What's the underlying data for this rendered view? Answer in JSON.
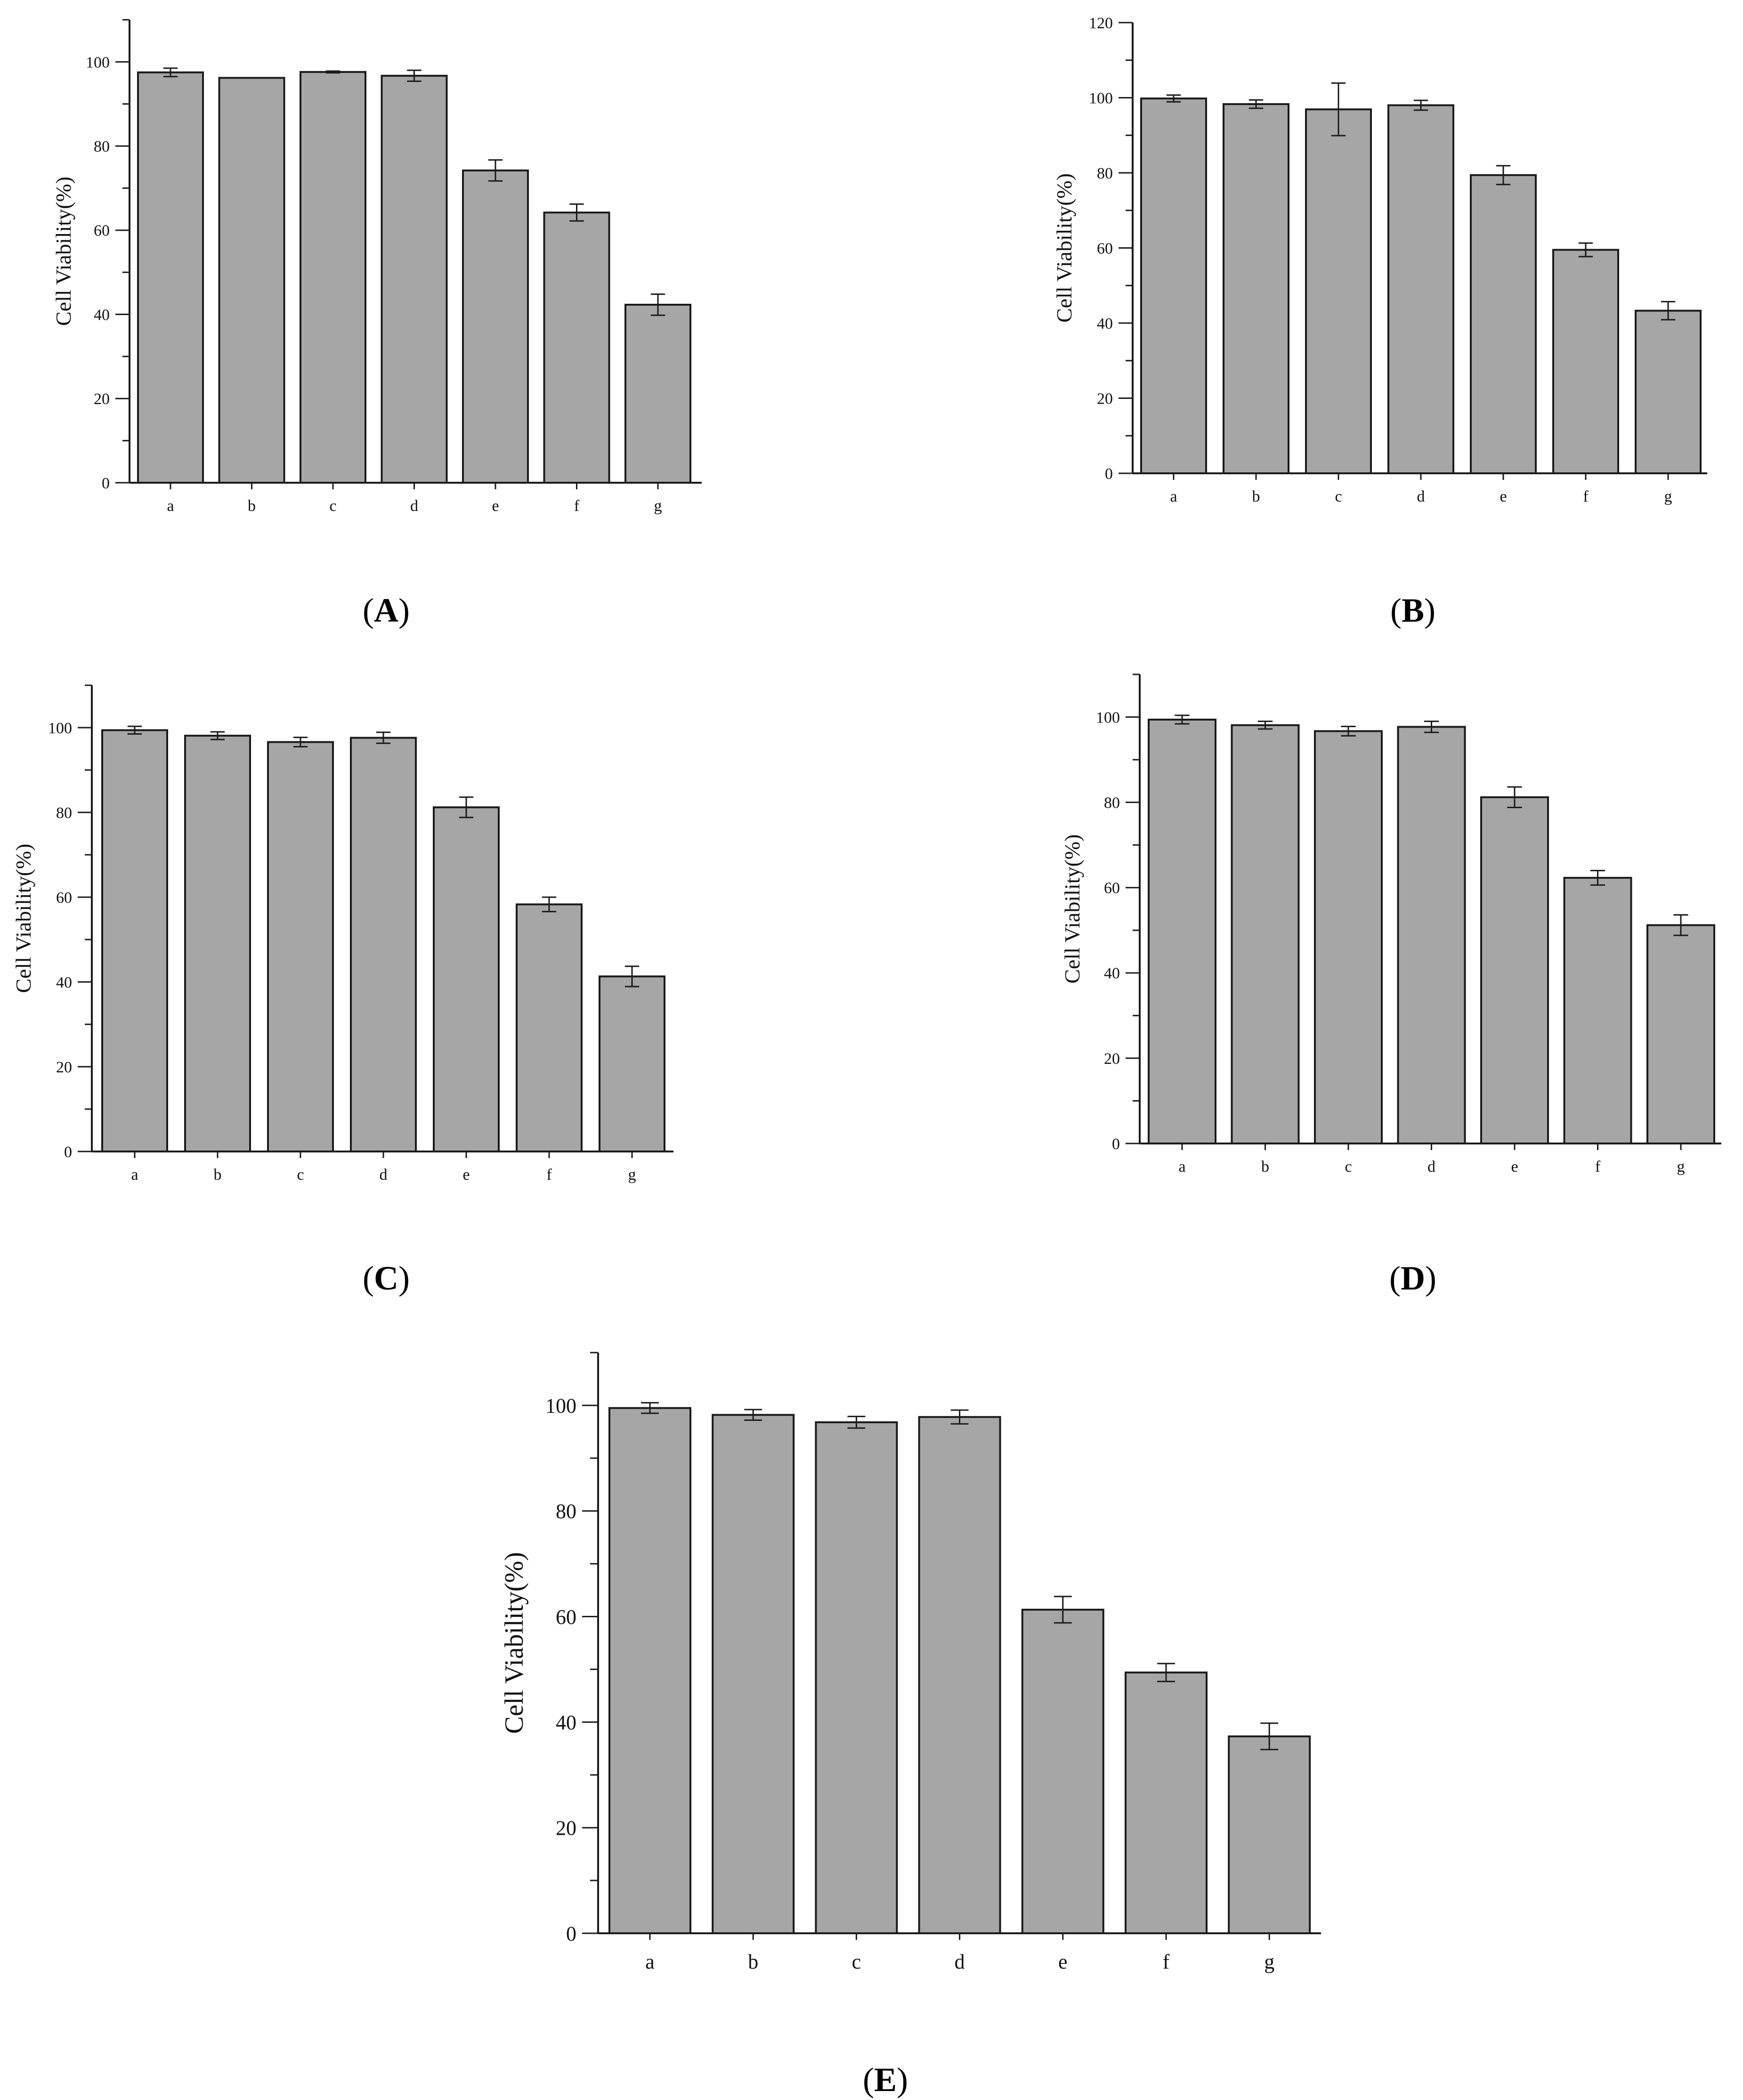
{
  "figure": {
    "bar_color": "#a6a6a6",
    "bar_stroke": "#1a1a1a",
    "axis_color": "#1a1a1a"
  },
  "chart_data": [
    {
      "panel": "A",
      "type": "bar",
      "categories": [
        "a",
        "b",
        "c",
        "d",
        "e",
        "f",
        "g"
      ],
      "values": [
        97.5,
        96.2,
        97.6,
        96.7,
        74.2,
        64.2,
        42.3
      ],
      "errors": [
        1.0,
        0.0,
        0.2,
        1.3,
        2.5,
        2.0,
        2.5
      ],
      "ylabel": "Cell Viability(%)",
      "xlabel": "",
      "ylim": [
        0,
        110
      ],
      "yticks": [
        0,
        20,
        40,
        60,
        80,
        100
      ],
      "grid": false
    },
    {
      "panel": "B",
      "type": "bar",
      "categories": [
        "a",
        "b",
        "c",
        "d",
        "e",
        "f",
        "g"
      ],
      "values": [
        99.8,
        98.3,
        96.9,
        98.0,
        79.4,
        59.5,
        43.3
      ],
      "errors": [
        0.9,
        1.1,
        7.0,
        1.3,
        2.5,
        1.8,
        2.4
      ],
      "ylabel": "Cell Viability(%)",
      "xlabel": "",
      "ylim": [
        0,
        120
      ],
      "yticks": [
        0,
        20,
        40,
        60,
        80,
        100,
        120
      ],
      "grid": false
    },
    {
      "panel": "C",
      "type": "bar",
      "categories": [
        "a",
        "b",
        "c",
        "d",
        "e",
        "f",
        "g"
      ],
      "values": [
        99.4,
        98.1,
        96.6,
        97.6,
        81.2,
        58.3,
        41.3
      ],
      "errors": [
        0.9,
        0.9,
        1.1,
        1.3,
        2.4,
        1.7,
        2.4
      ],
      "ylabel": "Cell Viability(%)",
      "xlabel": "",
      "ylim": [
        0,
        110
      ],
      "yticks": [
        0,
        20,
        40,
        60,
        80,
        100
      ],
      "grid": false
    },
    {
      "panel": "D",
      "type": "bar",
      "categories": [
        "a",
        "b",
        "c",
        "d",
        "e",
        "f",
        "g"
      ],
      "values": [
        99.4,
        98.1,
        96.7,
        97.7,
        81.2,
        62.3,
        51.2
      ],
      "errors": [
        1.0,
        0.9,
        1.1,
        1.3,
        2.4,
        1.7,
        2.4
      ],
      "ylabel": "Cell Viability(%)",
      "xlabel": "",
      "ylim": [
        0,
        110
      ],
      "yticks": [
        0,
        20,
        40,
        60,
        80,
        100
      ],
      "grid": false
    },
    {
      "panel": "E",
      "type": "bar",
      "categories": [
        "a",
        "b",
        "c",
        "d",
        "e",
        "f",
        "g"
      ],
      "values": [
        99.5,
        98.2,
        96.8,
        97.8,
        61.3,
        49.4,
        37.3
      ],
      "errors": [
        1.0,
        1.0,
        1.1,
        1.3,
        2.5,
        1.7,
        2.5
      ],
      "ylabel": "Cell Viability(%)",
      "xlabel": "",
      "ylim": [
        0,
        110
      ],
      "yticks": [
        0,
        20,
        40,
        60,
        80,
        100
      ],
      "grid": false
    }
  ]
}
